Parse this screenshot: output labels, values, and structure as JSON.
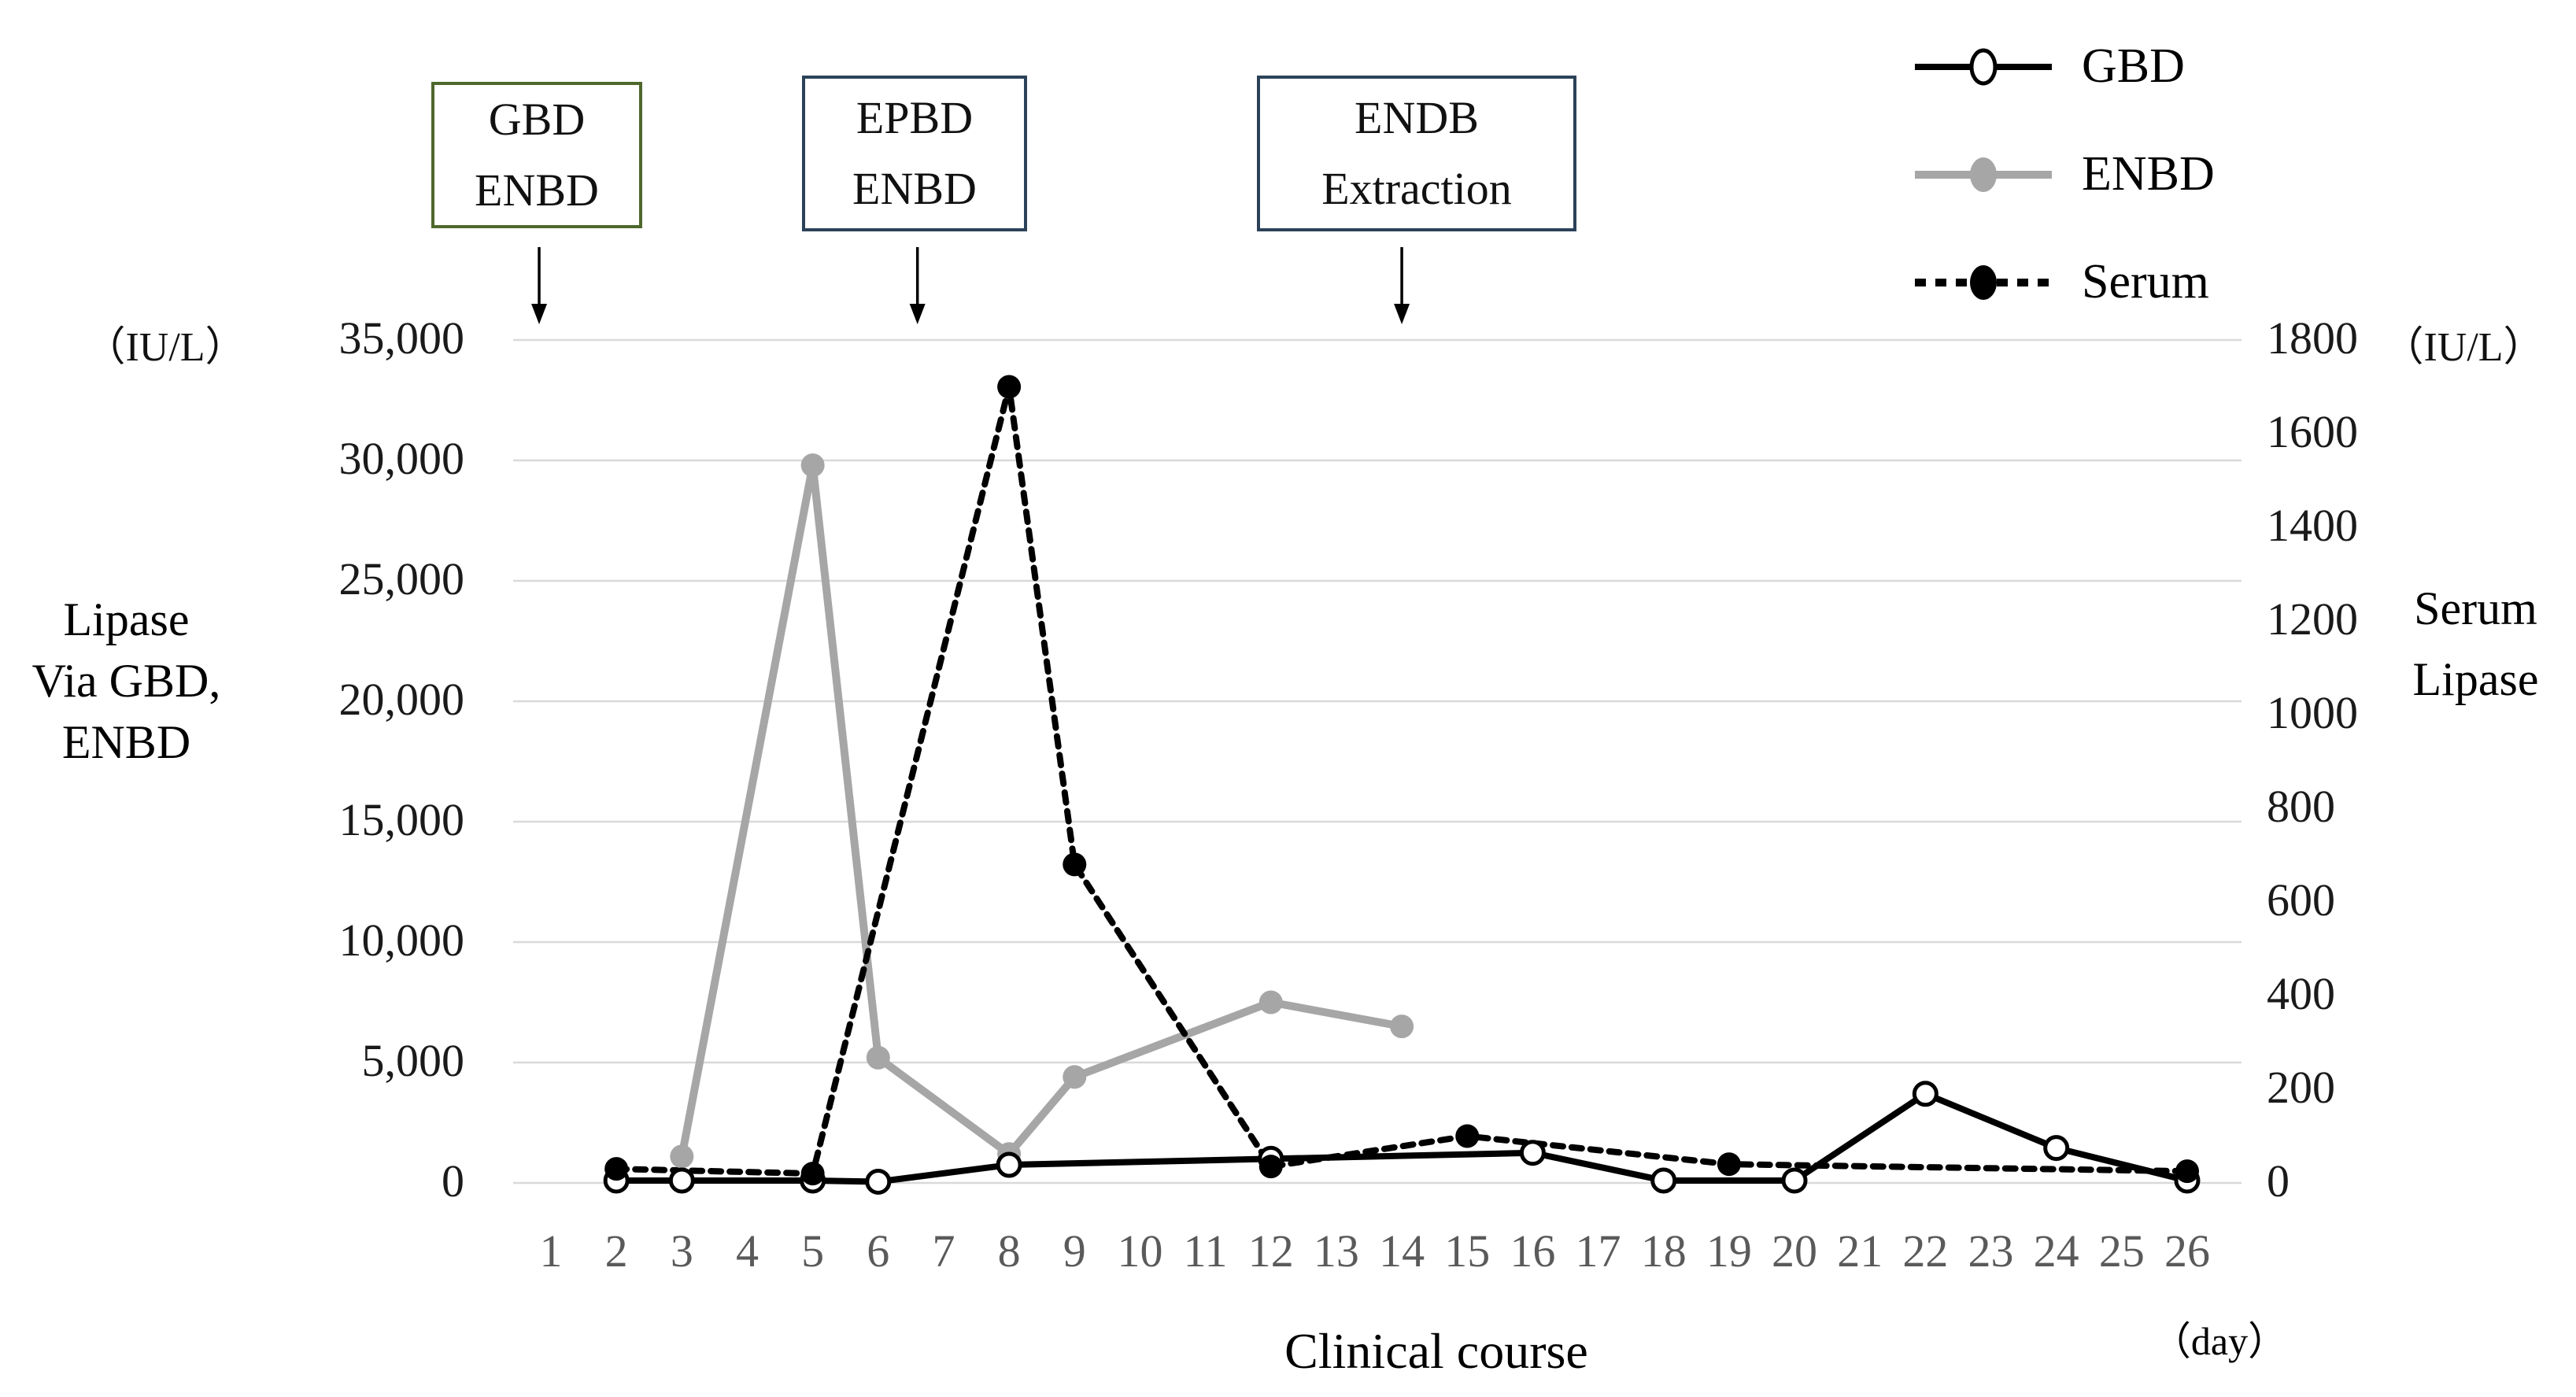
{
  "figure": {
    "left_axis": {
      "unit": "（IU/L）",
      "ticks": [
        "35,000",
        "30,000",
        "25,000",
        "20,000",
        "15,000",
        "10,000",
        "5,000",
        "0"
      ],
      "tick_values": [
        35000,
        30000,
        25000,
        20000,
        15000,
        10000,
        5000,
        0
      ],
      "title_lines": [
        "Lipase",
        "Via GBD,",
        "ENBD"
      ]
    },
    "right_axis": {
      "unit": "（IU/L）",
      "ticks": [
        "1800",
        "1600",
        "1400",
        "1200",
        "1000",
        "800",
        "600",
        "400",
        "200",
        "0"
      ],
      "tick_values": [
        1800,
        1600,
        1400,
        1200,
        1000,
        800,
        600,
        400,
        200,
        0
      ],
      "title_lines": [
        "Serum",
        "Lipase"
      ]
    },
    "x_axis": {
      "labels": [
        "1",
        "2",
        "3",
        "4",
        "5",
        "6",
        "7",
        "8",
        "9",
        "10",
        "11",
        "12",
        "13",
        "14",
        "15",
        "16",
        "17",
        "18",
        "19",
        "20",
        "21",
        "22",
        "23",
        "24",
        "25",
        "26"
      ],
      "title": "Clinical course",
      "unit": "（day）"
    },
    "legend": [
      {
        "label": "GBD"
      },
      {
        "label": "ENBD"
      },
      {
        "label": "Serum"
      }
    ],
    "annotations": [
      {
        "lines": [
          "GBD",
          "ENBD"
        ],
        "border_color": "#4e682b",
        "arrow_day": 0.82
      },
      {
        "lines": [
          "EPBD",
          "ENBD"
        ],
        "border_color": "#2b4259",
        "arrow_day": 6.6
      },
      {
        "lines": [
          "ENDB",
          "Extraction"
        ],
        "border_color": "#2b4259",
        "arrow_day": 14
      }
    ],
    "colors": {
      "gbd_line": "#000000",
      "enbd_line": "#a6a6a6",
      "serum_line": "#000000",
      "gridline": "#d9d9d9",
      "x_label": "#5a5a5a"
    }
  },
  "chart_data": {
    "type": "line",
    "title": "",
    "xlabel": "Clinical course",
    "x_unit": "（day）",
    "x_categories": [
      1,
      2,
      3,
      4,
      5,
      6,
      7,
      8,
      9,
      10,
      11,
      12,
      13,
      14,
      15,
      16,
      17,
      18,
      19,
      20,
      21,
      22,
      23,
      24,
      25,
      26
    ],
    "left_ylabel": "Lipase Via GBD, ENBD (IU/L)",
    "right_ylabel": "Serum Lipase (IU/L)",
    "left_ylim": [
      0,
      35000
    ],
    "left_step": 5000,
    "right_ylim": [
      0,
      1800
    ],
    "right_step": 200,
    "grid": "horizontal",
    "legend_position": "top-right",
    "series": [
      {
        "name": "ENBD",
        "axis": "left",
        "color": "#a6a6a6",
        "style": "solid",
        "marker": "filled-circle",
        "points": [
          [
            3,
            1100
          ],
          [
            5,
            29800
          ],
          [
            6,
            5200
          ],
          [
            8,
            1200
          ],
          [
            9,
            4400
          ],
          [
            12,
            7500
          ],
          [
            14,
            6500
          ]
        ]
      },
      {
        "name": "GBD",
        "axis": "left",
        "color": "#000000",
        "style": "solid",
        "marker": "open-circle",
        "points": [
          [
            2,
            100
          ],
          [
            3,
            100
          ],
          [
            5,
            100
          ],
          [
            6,
            50
          ],
          [
            8,
            750
          ],
          [
            12,
            1000
          ],
          [
            16,
            1250
          ],
          [
            18,
            100
          ],
          [
            20,
            100
          ],
          [
            22,
            3700
          ],
          [
            24,
            1450
          ],
          [
            26,
            100
          ]
        ]
      },
      {
        "name": "Serum",
        "axis": "right",
        "color": "#000000",
        "style": "dotted",
        "marker": "filled-circle",
        "points": [
          [
            2,
            30
          ],
          [
            5,
            20
          ],
          [
            8,
            1700
          ],
          [
            9,
            680
          ],
          [
            12,
            35
          ],
          [
            15,
            100
          ],
          [
            19,
            40
          ],
          [
            26,
            25
          ]
        ]
      }
    ]
  }
}
